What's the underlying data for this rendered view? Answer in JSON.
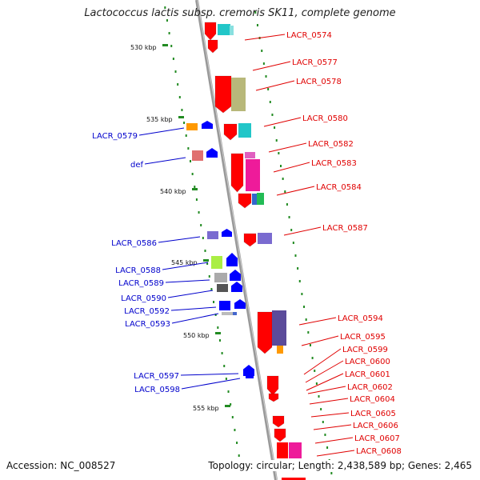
{
  "title": "Lactococcus lactis subsp. cremoris SK11, complete genome",
  "accession": "Accession: NC_008527",
  "topology": "Topology: circular; Length: 2,438,589 bp; Genes: 2,465",
  "ticks": [
    "530 kbp",
    "535 kbp",
    "540 kbp",
    "545 kbp",
    "550 kbp",
    "555 kbp"
  ],
  "right_labels": [
    "LACR_0574",
    "LACR_0577",
    "LACR_0578",
    "LACR_0580",
    "LACR_0582",
    "LACR_0583",
    "LACR_0584",
    "LACR_0587",
    "LACR_0594",
    "LACR_0595",
    "LACR_0599",
    "LACR_0600",
    "LACR_0601",
    "LACR_0602",
    "LACR_0604",
    "LACR_0605",
    "LACR_0606",
    "LACR_0607",
    "LACR_0608"
  ],
  "left_labels": [
    "LACR_0579",
    "def",
    "LACR_0586",
    "LACR_0588",
    "LACR_0589",
    "LACR_0590",
    "LACR_0592",
    "LACR_0593",
    "LACR_0597",
    "LACR_0598"
  ],
  "colors": {
    "forward": "#ff0000",
    "reverse": "#0000ff",
    "backbone": "#999999",
    "right_label": "#e00000",
    "left_label": "#0000cc",
    "dots": "#228b22"
  }
}
